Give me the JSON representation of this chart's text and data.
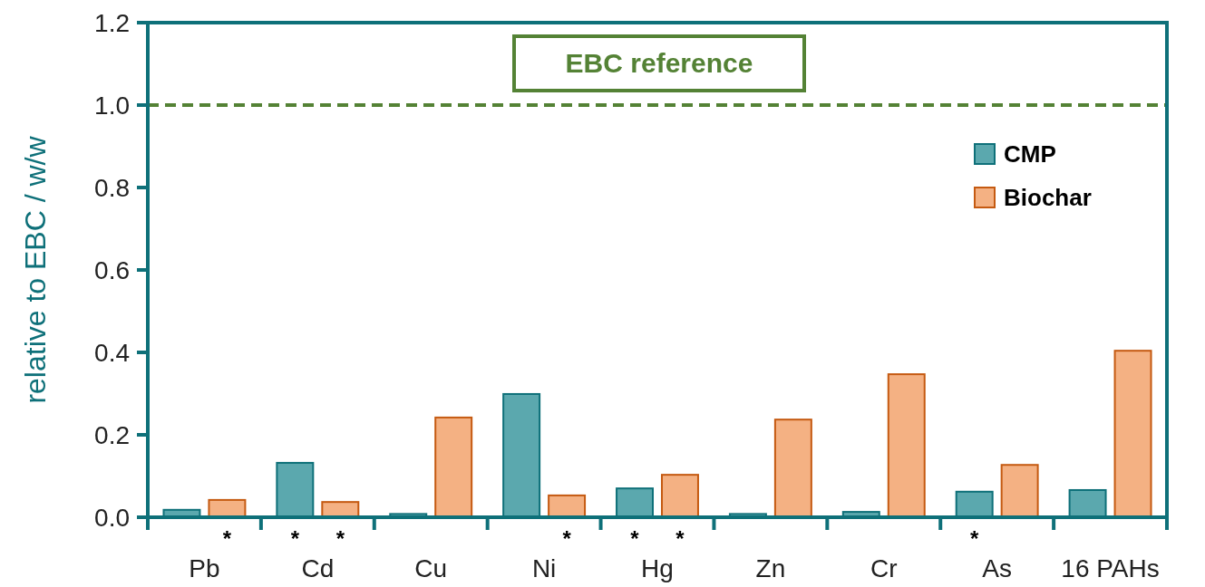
{
  "chart_data": {
    "type": "bar",
    "ylabel": "relative to EBC / w/w",
    "categories": [
      "Pb",
      "Cd",
      "Cu",
      "Ni",
      "Hg",
      "Zn",
      "Cr",
      "As",
      "16 PAHs"
    ],
    "series": [
      {
        "name": "CMP",
        "color": "#5ba8ae",
        "values": [
          0.018,
          0.132,
          0.008,
          0.299,
          0.07,
          0.008,
          0.013,
          0.062,
          0.066
        ],
        "value_labels": [
          null,
          "*",
          null,
          null,
          "*",
          null,
          null,
          "*",
          null
        ]
      },
      {
        "name": "Biochar",
        "color": "#f4b183",
        "values": [
          0.042,
          0.037,
          0.242,
          0.053,
          0.103,
          0.237,
          0.347,
          0.127,
          0.404
        ],
        "value_labels": [
          "*",
          "*",
          null,
          "*",
          "*",
          null,
          null,
          null,
          null
        ]
      }
    ],
    "ylim": [
      0,
      1.2
    ],
    "yticks": [
      {
        "value": 0,
        "label": "0.0"
      },
      {
        "value": 0.2,
        "label": "0.2"
      },
      {
        "value": 0.4,
        "label": "0.4"
      },
      {
        "value": 0.6,
        "label": "0.6"
      },
      {
        "value": 0.8,
        "label": "0.8"
      },
      {
        "value": 1,
        "label": "1.0"
      },
      {
        "value": 1.2,
        "label": "1.2"
      }
    ],
    "ref_lines": [
      {
        "axis": "y",
        "value": 1,
        "label": "EBC reference",
        "color": "#548235",
        "line_style": "dashed"
      }
    ],
    "legend": "top right",
    "grid": false
  }
}
